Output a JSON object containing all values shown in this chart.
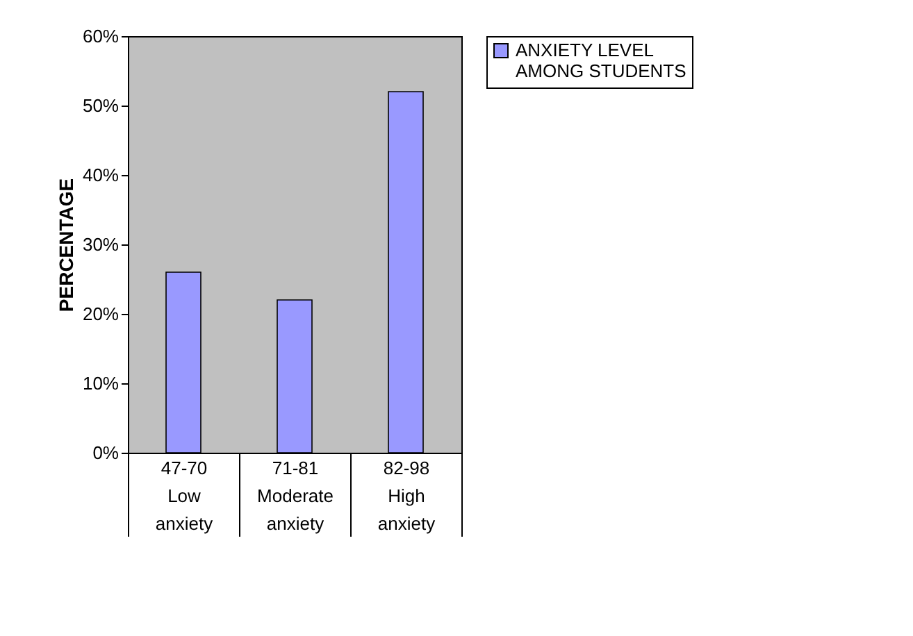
{
  "chart_data": {
    "type": "bar",
    "ylabel": "PERCENTAGE",
    "categories": [
      "47-70\nLow\nanxiety",
      "71-81\nModerate\nanxiety",
      "82-98\nHigh\nanxiety"
    ],
    "series": [
      {
        "name": "ANXIETY LEVEL AMONG STUDENTS",
        "color": "#9999ff",
        "values": [
          26,
          22,
          52
        ]
      }
    ],
    "ylim": [
      0,
      60
    ],
    "yticks": [
      {
        "value": 0,
        "label": "0%"
      },
      {
        "value": 10,
        "label": "10%"
      },
      {
        "value": 20,
        "label": "20%"
      },
      {
        "value": 30,
        "label": "30%"
      },
      {
        "value": 40,
        "label": "40%"
      },
      {
        "value": 50,
        "label": "50%"
      },
      {
        "value": 60,
        "label": "60%"
      }
    ],
    "grid": false,
    "legend": "right"
  }
}
